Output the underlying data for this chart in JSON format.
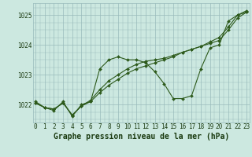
{
  "title": "Graphe pression niveau de la mer (hPa)",
  "hours": [
    0,
    1,
    2,
    3,
    4,
    5,
    6,
    7,
    8,
    9,
    10,
    11,
    12,
    13,
    14,
    15,
    16,
    17,
    18,
    19,
    20,
    21,
    22,
    23
  ],
  "ylim": [
    1021.4,
    1025.4
  ],
  "yticks": [
    1022,
    1023,
    1024,
    1025
  ],
  "xlim": [
    -0.3,
    23.3
  ],
  "line1": [
    1022.1,
    1021.9,
    1021.8,
    1022.1,
    1021.6,
    1022.0,
    1022.1,
    1023.2,
    1023.5,
    1023.6,
    1023.5,
    1023.5,
    1023.4,
    1023.1,
    1022.7,
    1022.2,
    1022.2,
    1022.3,
    1023.2,
    1023.9,
    1024.0,
    1024.8,
    1025.0,
    1025.15
  ],
  "line2": [
    1022.05,
    1021.9,
    1021.85,
    1022.05,
    1021.65,
    1021.95,
    1022.1,
    1022.4,
    1022.65,
    1022.85,
    1023.05,
    1023.2,
    1023.3,
    1023.4,
    1023.5,
    1023.6,
    1023.75,
    1023.85,
    1023.95,
    1024.05,
    1024.15,
    1024.5,
    1024.9,
    1025.1
  ],
  "line3": [
    1022.05,
    1021.9,
    1021.85,
    1022.05,
    1021.65,
    1021.95,
    1022.15,
    1022.5,
    1022.8,
    1023.0,
    1023.2,
    1023.35,
    1023.45,
    1023.5,
    1023.55,
    1023.65,
    1023.75,
    1023.85,
    1023.95,
    1024.1,
    1024.25,
    1024.6,
    1025.0,
    1025.1
  ],
  "bg_color": "#cce8e0",
  "grid_color": "#99bbbb",
  "line_color": "#2d5a1b",
  "marker": "D",
  "marker_size": 2.0,
  "line_width": 0.8,
  "title_fontsize": 7,
  "tick_fontsize": 5.5,
  "title_color": "#1a3a10",
  "tick_color": "#1a3a10"
}
